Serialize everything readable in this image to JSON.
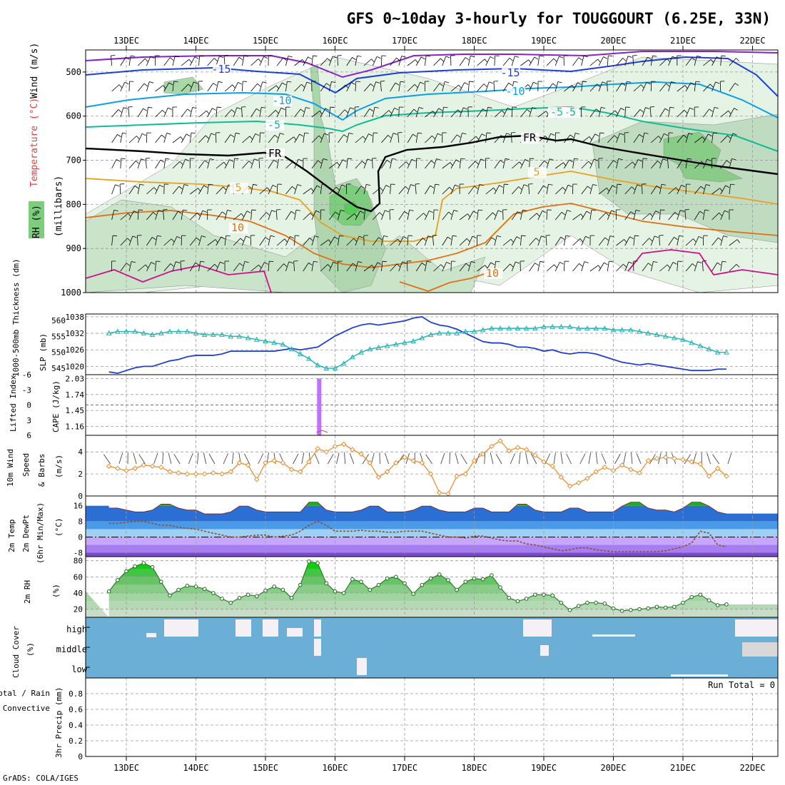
{
  "title": "GFS 0~10day 3-hourly for TOUGGOURT (6.25E, 33N)",
  "credit": "GrADS: COLA/IGES",
  "days": [
    "13DEC",
    "14DEC",
    "15DEC",
    "16DEC",
    "17DEC",
    "18DEC",
    "19DEC",
    "20DEC",
    "21DEC",
    "22DEC"
  ],
  "colors": {
    "temp_neg_strong": "#1f3fd4",
    "temp_neg_mid": "#0d9ee8",
    "temp_neg_weak": "#10bb95",
    "freezing": "#000000",
    "temp_pos": "#e8a020",
    "temp_pos_warm": "#e07010",
    "temp_hot": "#d0108a",
    "temp_cold_top": "#8a20c8",
    "rh_green": "#7ccd7c",
    "thickness": "#20b2b2",
    "slp": "#1f3fd4",
    "cape": "#c070ff",
    "lifted_index": "#e04040",
    "wind_speed": "#e89030",
    "cloud_blue": "#6baed6",
    "rh_fill": "#22c022"
  },
  "panels": {
    "upper_air": {
      "ylabels": {
        "wind": "Wind (m/s)",
        "temperature": "Temperature (°C)",
        "rh": "RH (%)",
        "units": "(millibars)"
      },
      "ticks": [
        "500",
        "600",
        "700",
        "800",
        "900",
        "1000"
      ],
      "contour_labels": [
        "-15",
        "-15",
        "-10",
        "-10",
        "-5",
        "-5",
        "FR",
        "FR",
        "5",
        "5",
        "10",
        "10",
        "-5"
      ]
    },
    "thickness_slp": {
      "ylabel_left": "1000-500mb Thickness (dm)",
      "ylabel_right": "SLP (mb)",
      "ticks_left": [
        "560",
        "555",
        "550",
        "545"
      ],
      "ticks_right": [
        "1038",
        "1032",
        "1026",
        "1020"
      ]
    },
    "cape_li": {
      "ylabel_left": "Lifted Index",
      "ylabel_right": "CAPE (J/kg)",
      "ticks_left": [
        "-6",
        "-3",
        "0",
        "3",
        "6"
      ],
      "ticks_right": [
        "2.03",
        "1.74",
        "1.45",
        "1.16"
      ]
    },
    "wind10m": {
      "ylabel_1": "10m Wind",
      "ylabel_2": "Speed",
      "ylabel_3": "& Barbs",
      "units": "(m/s)",
      "ticks": [
        "4",
        "2",
        "0"
      ]
    },
    "temp2m": {
      "ylabel_1": "2m Temp",
      "ylabel_2": "2m DewPt",
      "ylabel_3": "(6hr Min/Max)",
      "units": "(°C)",
      "ticks": [
        "16",
        "8",
        "0",
        "-8"
      ]
    },
    "rh2m": {
      "ylabel": "2m RH",
      "units": "(%)",
      "ticks": [
        "80",
        "60",
        "40",
        "20"
      ]
    },
    "cloud": {
      "ylabel": "Cloud Cover",
      "units": "(%)",
      "levels": [
        "high",
        "middle",
        "low"
      ]
    },
    "precip": {
      "ylabel_1": "Total / Rain",
      "ylabel_2": "Convective",
      "ylabel_3": "3hr Precip (mm)",
      "run_total": "Run Total = 0",
      "ticks": [
        "0.8",
        "0.6",
        "0.4",
        "0.2",
        "0"
      ]
    }
  },
  "chart_data": [
    {
      "type": "line",
      "name": "1000-500mb Thickness",
      "units": "dm",
      "ylim": [
        543,
        562
      ],
      "x_start": "12DEC18Z",
      "step_hours": 3,
      "values": [
        556,
        556.5,
        556.5,
        556.5,
        556,
        555.5,
        556,
        556.5,
        556.5,
        556.5,
        556,
        555.5,
        555.5,
        555.5,
        555,
        555,
        554.5,
        554,
        553.5,
        553,
        552.5,
        551,
        549.5,
        548,
        546,
        545,
        545,
        546.5,
        548.5,
        550,
        551,
        551.5,
        552,
        552.5,
        553,
        553.5,
        554.5,
        555.5,
        556,
        556,
        556,
        556.5,
        556.5,
        557,
        557.5,
        557.5,
        557.5,
        557.5,
        557.5,
        557.5,
        558,
        558,
        558,
        558,
        557.5,
        557.5,
        557.5,
        557.5,
        557,
        557,
        557,
        556.5,
        556,
        555.5,
        555,
        554.5,
        554,
        553,
        552,
        551,
        550,
        550
      ]
    },
    {
      "type": "line",
      "name": "SLP",
      "units": "mb",
      "ylim": [
        1017,
        1039
      ],
      "x_start": "12DEC18Z",
      "step_hours": 3,
      "values": [
        1018,
        1017.5,
        1018.5,
        1019.5,
        1020,
        1020,
        1021,
        1022,
        1022.5,
        1023.5,
        1024,
        1024,
        1024,
        1024.5,
        1025.5,
        1025.5,
        1025.5,
        1025.5,
        1025.5,
        1025.5,
        1026,
        1026.5,
        1026,
        1026.5,
        1027,
        1029,
        1031,
        1032.5,
        1034,
        1035,
        1035.5,
        1035,
        1035.5,
        1036,
        1036.5,
        1037.5,
        1038,
        1036,
        1035,
        1034.5,
        1033.5,
        1032,
        1030.5,
        1029,
        1028.5,
        1028.5,
        1028,
        1027,
        1027,
        1026.5,
        1025.5,
        1026,
        1025,
        1024.5,
        1025,
        1025,
        1024.5,
        1023.5,
        1022.5,
        1021.5,
        1021,
        1020.5,
        1021,
        1020.5,
        1020,
        1019.5,
        1019,
        1018.5,
        1018.5,
        1018.5,
        1019,
        1019
      ]
    },
    {
      "type": "bar",
      "name": "CAPE",
      "units": "J/kg",
      "ylim": [
        1.0,
        2.1
      ],
      "bars": [
        {
          "time": "15DEC21Z",
          "value": 2.03
        }
      ]
    },
    {
      "type": "line",
      "name": "10m Wind Speed",
      "units": "m/s",
      "ylim": [
        0,
        5.5
      ],
      "x_start": "12DEC18Z",
      "step_hours": 3,
      "values": [
        2.7,
        2.5,
        2.3,
        2.5,
        2.8,
        2.7,
        2.6,
        2.2,
        2.1,
        2.0,
        2.0,
        2.0,
        2.1,
        2.0,
        2.2,
        3.0,
        2.8,
        1.5,
        3.0,
        3.2,
        3.0,
        2.4,
        2.2,
        3.1,
        4.3,
        4.0,
        4.5,
        4.7,
        4.2,
        3.8,
        3.0,
        1.7,
        2.2,
        3.0,
        3.5,
        3.2,
        3.0,
        2.0,
        0.3,
        0.2,
        1.8,
        2.0,
        3.2,
        3.8,
        4.5,
        5.0,
        4.1,
        4.4,
        4.2,
        3.7,
        3.1,
        2.7,
        1.7,
        0.9,
        1.2,
        1.6,
        2.2,
        2.6,
        2.3,
        2.8,
        2.4,
        2.1,
        3.2,
        3.4,
        3.5,
        3.4,
        3.3,
        3.1,
        2.9,
        1.8,
        2.5,
        1.8
      ]
    },
    {
      "type": "area",
      "name": "2m Temperature",
      "units": "°C",
      "ylim": [
        -10,
        21
      ],
      "x_start": "12DEC18Z",
      "step_hours": 3,
      "values": [
        15,
        15,
        14,
        13,
        13,
        14,
        17,
        17,
        15,
        14,
        14,
        12,
        12,
        12,
        13,
        16,
        16,
        14,
        13,
        13,
        13,
        13,
        13,
        18,
        18,
        14,
        13,
        13,
        13,
        14,
        16,
        16,
        13,
        13,
        13,
        14,
        16,
        16,
        14,
        13,
        13,
        13,
        15,
        15,
        13,
        13,
        13,
        17,
        17,
        14,
        13,
        13,
        13,
        15,
        15,
        13,
        13,
        13,
        13,
        16,
        18,
        18,
        15,
        14,
        14,
        13,
        15,
        18,
        18,
        16,
        13,
        12
      ]
    },
    {
      "type": "line",
      "name": "2m Dew Point",
      "units": "°C",
      "ylim": [
        -10,
        21
      ],
      "x_start": "12DEC18Z",
      "step_hours": 3,
      "values": [
        7,
        7,
        7.5,
        8,
        8,
        7,
        6,
        6,
        5,
        4.5,
        4,
        3,
        2,
        1,
        0,
        0,
        0.5,
        1,
        1,
        0,
        0.5,
        1,
        3,
        6,
        8,
        6,
        3,
        3,
        3,
        3.5,
        3,
        3,
        2.5,
        2.5,
        3,
        3,
        3,
        2,
        1,
        0,
        0,
        -0.5,
        0.5,
        0.5,
        -0.5,
        -1.5,
        -2,
        -2,
        -3.5,
        -4,
        -5,
        -6,
        -7,
        -6.5,
        -5.5,
        -5.5,
        -6.5,
        -7,
        -7.5,
        -7.5,
        -7.5,
        -7.5,
        -7.5,
        -7.5,
        -7,
        -6,
        -5,
        -3,
        3,
        2,
        -4,
        -5
      ]
    },
    {
      "type": "area",
      "name": "2m RH",
      "units": "%",
      "ylim": [
        10,
        85
      ],
      "x_start": "12DEC18Z",
      "step_hours": 3,
      "values": [
        42,
        56,
        67,
        73,
        77,
        72,
        54,
        37,
        44,
        49,
        48,
        45,
        40,
        33,
        28,
        34,
        38,
        36,
        43,
        48,
        44,
        34,
        50,
        79,
        77,
        52,
        42,
        40,
        57,
        54,
        44,
        50,
        58,
        60,
        52,
        39,
        50,
        58,
        63,
        56,
        44,
        54,
        58,
        57,
        62,
        47,
        34,
        30,
        33,
        38,
        38,
        37,
        28,
        19,
        24,
        28,
        28,
        27,
        21,
        18,
        19,
        20,
        21,
        23,
        22,
        23,
        28,
        35,
        38,
        31,
        25,
        26
      ]
    },
    {
      "type": "bar",
      "name": "3hr Precip",
      "units": "mm",
      "ylim": [
        0,
        1.0
      ],
      "values": [],
      "run_total": 0
    }
  ]
}
